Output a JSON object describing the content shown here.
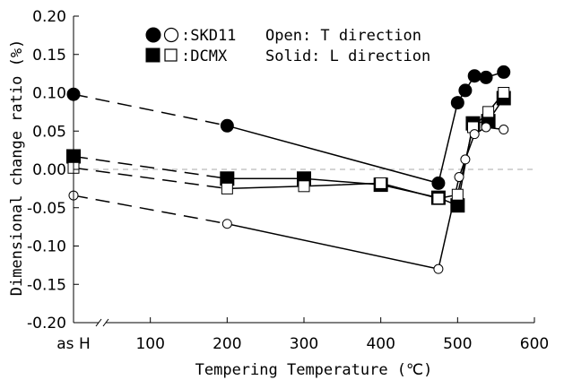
{
  "chart_data": {
    "type": "line",
    "xlabel": "Tempering Temperature (℃)",
    "ylabel": "Dimensional change ratio (%)",
    "xlim": [
      0,
      600
    ],
    "ylim": [
      -0.2,
      0.2
    ],
    "x_ticks": [
      {
        "value": 0,
        "label": "as H"
      },
      {
        "value": 100,
        "label": "100"
      },
      {
        "value": 200,
        "label": "200"
      },
      {
        "value": 300,
        "label": "300"
      },
      {
        "value": 400,
        "label": "400"
      },
      {
        "value": 500,
        "label": "500"
      },
      {
        "value": 600,
        "label": "600"
      }
    ],
    "y_ticks": [
      {
        "value": 0.2,
        "label": "0.20"
      },
      {
        "value": 0.15,
        "label": "0.15"
      },
      {
        "value": 0.1,
        "label": "0.10"
      },
      {
        "value": 0.05,
        "label": "0.05"
      },
      {
        "value": 0.0,
        "label": "0.00"
      },
      {
        "value": -0.05,
        "label": "-0.05"
      },
      {
        "value": -0.1,
        "label": "-0.10"
      },
      {
        "value": -0.15,
        "label": "-0.15"
      },
      {
        "value": -0.2,
        "label": "-0.20"
      }
    ],
    "grid": false,
    "legend": {
      "entries": [
        {
          "label": ":SKD11",
          "marker": "circle"
        },
        {
          "label": ":DCMX",
          "marker": "square"
        }
      ],
      "notes": [
        "Open: T direction",
        "Solid: L direction"
      ],
      "placement": "top-center"
    },
    "series": [
      {
        "marker": "circle",
        "filled": true,
        "marker_size": "large",
        "x": [
          0,
          200,
          475,
          500,
          510,
          522,
          537,
          560
        ],
        "y": [
          0.098,
          0.057,
          -0.018,
          0.087,
          0.103,
          0.122,
          0.12,
          0.127
        ]
      },
      {
        "marker": "square",
        "filled": true,
        "marker_size": "large",
        "x": [
          0,
          200,
          300,
          400,
          475,
          500,
          520,
          540,
          560
        ],
        "y": [
          0.017,
          -0.012,
          -0.012,
          -0.02,
          -0.037,
          -0.047,
          0.06,
          0.063,
          0.093
        ]
      },
      {
        "marker": "square",
        "filled": false,
        "marker_size": "small",
        "x": [
          0,
          200,
          300,
          400,
          475,
          500,
          520,
          540,
          560
        ],
        "y": [
          0.002,
          -0.025,
          -0.022,
          -0.018,
          -0.038,
          -0.033,
          0.055,
          0.075,
          0.1
        ]
      },
      {
        "marker": "circle",
        "filled": false,
        "marker_size": "small",
        "x": [
          0,
          200,
          475,
          502,
          510,
          522,
          537,
          560
        ],
        "y": [
          -0.034,
          -0.071,
          -0.13,
          -0.01,
          0.013,
          0.046,
          0.055,
          0.052
        ]
      }
    ],
    "reference_lines": [
      {
        "axis": "y",
        "value": 0,
        "style": "dashed"
      },
      {
        "axis": "x",
        "value": 0,
        "style": "dash-dot"
      }
    ]
  }
}
